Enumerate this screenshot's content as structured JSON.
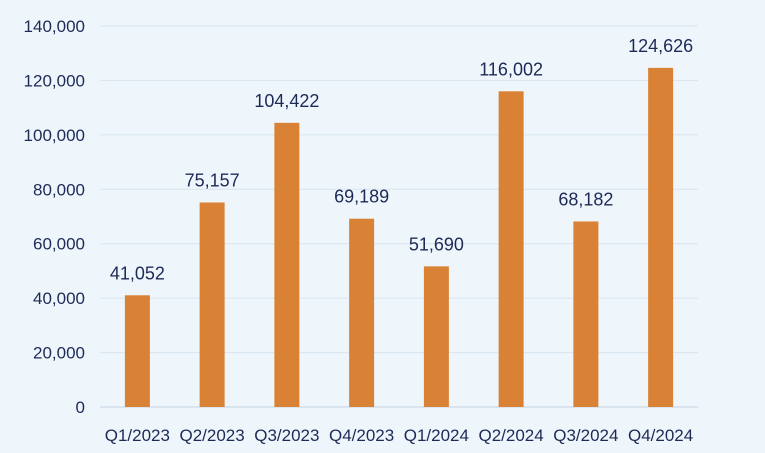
{
  "chart_data": {
    "type": "bar",
    "title": "",
    "xlabel": "",
    "ylabel": "",
    "categories": [
      "Q1/2023",
      "Q2/2023",
      "Q3/2023",
      "Q4/2023",
      "Q1/2024",
      "Q2/2024",
      "Q3/2024",
      "Q4/2024"
    ],
    "values": [
      41052,
      75157,
      104422,
      69189,
      51690,
      116002,
      68182,
      124626
    ],
    "data_labels": [
      "41,052",
      "75,157",
      "104,422",
      "69,189",
      "51,690",
      "116,002",
      "68,182",
      "124,626"
    ],
    "ylim": [
      0,
      140000
    ],
    "y_ticks": [
      0,
      20000,
      40000,
      60000,
      80000,
      100000,
      120000,
      140000
    ],
    "y_tick_labels": [
      "0",
      "20,000",
      "40,000",
      "60,000",
      "80,000",
      "100,000",
      "120,000",
      "140,000"
    ],
    "grid": true,
    "legend": "none",
    "colors": {
      "bar": "#d98236",
      "background": "#eef6fc",
      "grid": "#d7e4ef",
      "text": "#1d2a57"
    }
  }
}
